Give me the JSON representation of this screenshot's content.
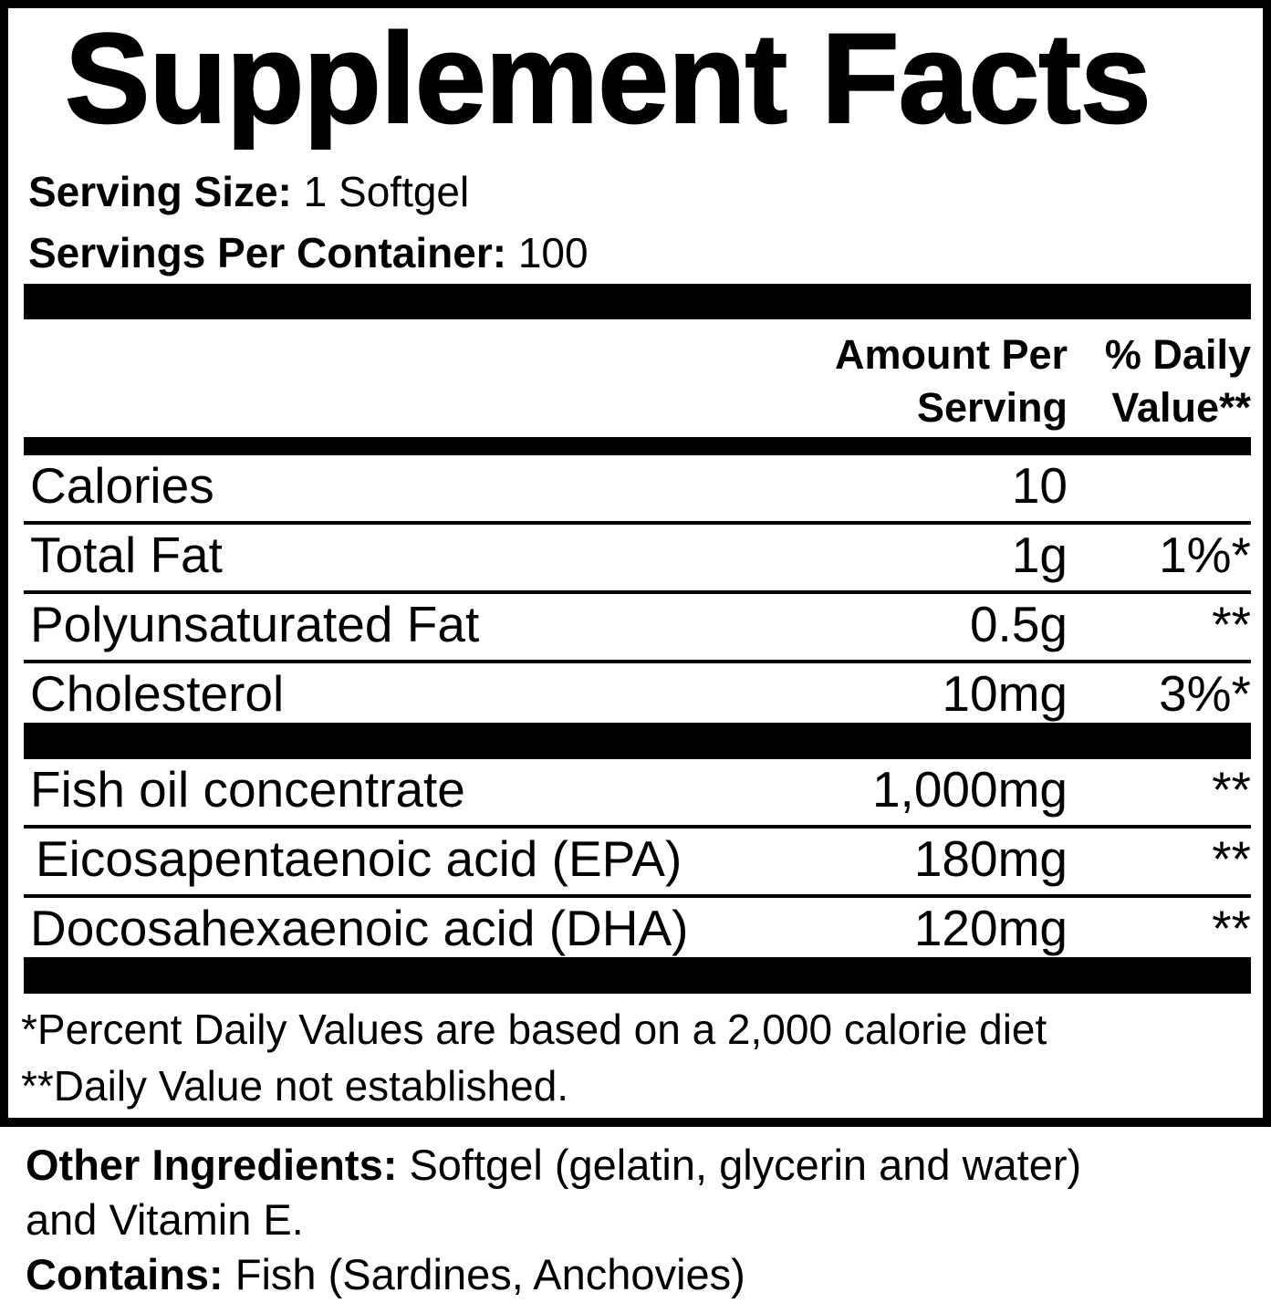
{
  "title": "Supplement Facts",
  "serving": {
    "size_label": "Serving Size:",
    "size_value": "1 Softgel",
    "per_container_label": "Servings Per Container:",
    "per_container_value": "100"
  },
  "header": {
    "amount_line1": "Amount Per",
    "amount_line2": "Serving",
    "dv_line1": "% Daily",
    "dv_line2": "Value**"
  },
  "rows": [
    {
      "group": "A",
      "name": "Calories",
      "amount": "10",
      "dv": "",
      "indent": false
    },
    {
      "group": "A",
      "name": "Total Fat",
      "amount": "1g",
      "dv": "1%*",
      "indent": false
    },
    {
      "group": "A",
      "name": "Polyunsaturated Fat",
      "amount": "0.5g",
      "dv": "**",
      "indent": false
    },
    {
      "group": "A",
      "name": "Cholesterol",
      "amount": "10mg",
      "dv": "3%*",
      "indent": false
    },
    {
      "group": "B",
      "name": "Fish oil concentrate",
      "amount": "1,000mg",
      "dv": "**",
      "indent": false
    },
    {
      "group": "B",
      "name": "Eicosapentaenoic acid (EPA)",
      "amount": "180mg",
      "dv": "**",
      "indent": true
    },
    {
      "group": "B",
      "name": "Docosahexaenoic acid (DHA)",
      "amount": "120mg",
      "dv": "**",
      "indent": false
    }
  ],
  "footnotes": [
    "*Percent Daily Values are based on a 2,000 calorie diet",
    "**Daily Value not established."
  ],
  "other_ingredients": {
    "label": "Other Ingredients:",
    "line1": "Softgel (gelatin, glycerin and water)",
    "line2": "and Vitamin E."
  },
  "contains": {
    "label": "Contains:",
    "value": "Fish (Sardines, Anchovies)"
  },
  "colors": {
    "ink": "#000000",
    "background": "#ffffff"
  }
}
